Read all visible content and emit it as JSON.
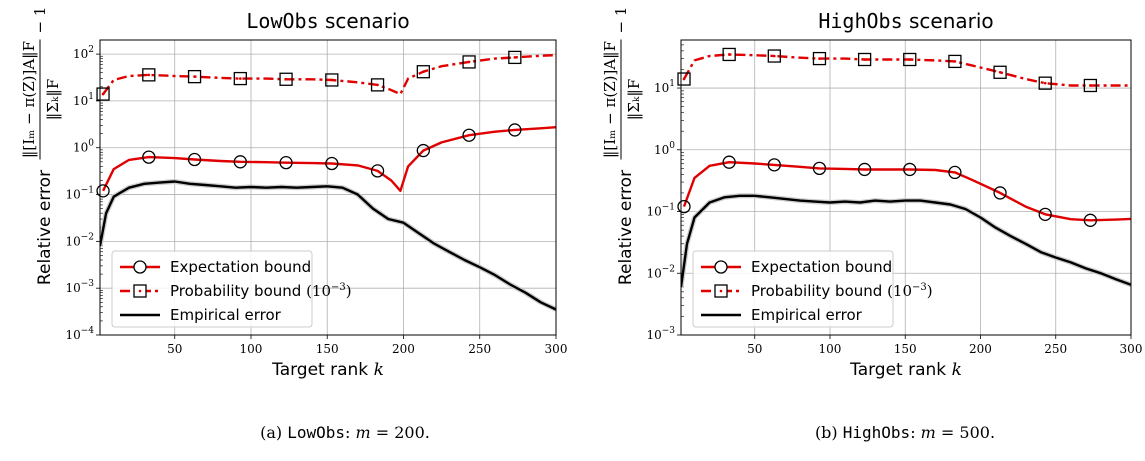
{
  "chart_data": [
    {
      "type": "line",
      "title_part1": "LowObs",
      "title_part2": " scenario",
      "xlabel": "Target rank ",
      "xlabel_var": "k",
      "ylabel_word": "Relative error",
      "ylabel_formula_num": "‖[Iₘ − π(Z)]A‖F",
      "ylabel_formula_den": "‖Σ̄ₖ‖F",
      "ylabel_minus_one": "− 1",
      "xlim": [
        1,
        300
      ],
      "ylim": [
        0.0001,
        200
      ],
      "y_scale": "log",
      "grid": true,
      "legend_position": "lower-left",
      "xticks": [
        "50",
        "100",
        "150",
        "200",
        "250",
        "300"
      ],
      "yticks": [
        {
          "base": "10",
          "exp": "2",
          "v": 100
        },
        {
          "base": "10",
          "exp": "1",
          "v": 10
        },
        {
          "base": "10",
          "exp": "0",
          "v": 1
        },
        {
          "base": "10",
          "exp": "−1",
          "v": 0.1
        },
        {
          "base": "10",
          "exp": "−2",
          "v": 0.01
        },
        {
          "base": "10",
          "exp": "−3",
          "v": 0.001
        },
        {
          "base": "10",
          "exp": "−4",
          "v": 0.0001
        }
      ],
      "series": [
        {
          "name": "Expectation bound",
          "color": "#e00000",
          "style": "solid",
          "marker": "circle",
          "x": [
            3,
            10,
            20,
            33,
            50,
            63,
            80,
            93,
            110,
            123,
            140,
            153,
            170,
            183,
            192,
            198,
            203,
            213,
            225,
            243,
            260,
            273,
            290,
            300
          ],
          "y": [
            0.12,
            0.35,
            0.55,
            0.63,
            0.6,
            0.56,
            0.52,
            0.5,
            0.49,
            0.48,
            0.47,
            0.46,
            0.42,
            0.32,
            0.2,
            0.12,
            0.4,
            0.87,
            1.3,
            1.85,
            2.2,
            2.4,
            2.6,
            2.75
          ],
          "marker_x": [
            3,
            33,
            63,
            93,
            123,
            153,
            183,
            213,
            243,
            273
          ]
        },
        {
          "name": "Probability bound ",
          "name_math": "(10",
          "name_exp": "−3",
          "name_close": ")",
          "color": "#e00000",
          "style": "dashdot",
          "marker": "square",
          "x": [
            3,
            10,
            20,
            33,
            50,
            63,
            80,
            93,
            110,
            123,
            140,
            153,
            170,
            183,
            192,
            198,
            203,
            213,
            225,
            243,
            260,
            273,
            290,
            300
          ],
          "y": [
            14,
            28,
            34,
            36,
            34,
            33,
            31,
            30,
            30,
            29,
            29,
            28,
            25,
            22,
            17,
            14,
            30,
            42,
            55,
            68,
            80,
            85,
            92,
            95
          ],
          "marker_x": [
            3,
            33,
            63,
            93,
            123,
            153,
            183,
            213,
            243,
            273
          ]
        },
        {
          "name": "Empirical error",
          "color": "#000000",
          "style": "solid",
          "marker": "none",
          "x": [
            1,
            5,
            10,
            20,
            30,
            40,
            50,
            60,
            70,
            80,
            90,
            100,
            110,
            120,
            130,
            140,
            150,
            160,
            170,
            180,
            190,
            200,
            210,
            220,
            230,
            240,
            250,
            260,
            270,
            280,
            290,
            300
          ],
          "y": [
            0.008,
            0.04,
            0.09,
            0.14,
            0.17,
            0.18,
            0.19,
            0.17,
            0.16,
            0.15,
            0.14,
            0.145,
            0.14,
            0.145,
            0.14,
            0.145,
            0.15,
            0.14,
            0.1,
            0.05,
            0.03,
            0.025,
            0.015,
            0.009,
            0.006,
            0.004,
            0.0028,
            0.0019,
            0.0012,
            0.0008,
            0.0005,
            0.00035
          ]
        }
      ],
      "caption_prefix": "(a) ",
      "caption_mono": "LowObs",
      "caption_rest": ": ",
      "caption_var": "m",
      "caption_value": " = 200."
    },
    {
      "type": "line",
      "title_part1": "HighObs",
      "title_part2": " scenario",
      "xlabel": "Target rank ",
      "xlabel_var": "k",
      "ylabel_word": "Relative error",
      "ylabel_formula_num": "‖[Iₘ − π(Z)]A‖F",
      "ylabel_formula_den": "‖Σ̄ₖ‖F",
      "ylabel_minus_one": "− 1",
      "xlim": [
        1,
        300
      ],
      "ylim": [
        0.001,
        60
      ],
      "y_scale": "log",
      "grid": true,
      "legend_position": "lower-left",
      "xticks": [
        "50",
        "100",
        "150",
        "200",
        "250",
        "300"
      ],
      "yticks": [
        {
          "base": "10",
          "exp": "1",
          "v": 10
        },
        {
          "base": "10",
          "exp": "0",
          "v": 1
        },
        {
          "base": "10",
          "exp": "−1",
          "v": 0.1
        },
        {
          "base": "10",
          "exp": "−2",
          "v": 0.01
        },
        {
          "base": "10",
          "exp": "−3",
          "v": 0.001
        }
      ],
      "series": [
        {
          "name": "Expectation bound",
          "color": "#e00000",
          "style": "solid",
          "marker": "circle",
          "x": [
            3,
            10,
            20,
            33,
            50,
            63,
            80,
            93,
            110,
            123,
            140,
            153,
            170,
            183,
            195,
            213,
            230,
            243,
            260,
            273,
            290,
            300
          ],
          "y": [
            0.12,
            0.35,
            0.55,
            0.63,
            0.6,
            0.57,
            0.53,
            0.5,
            0.49,
            0.48,
            0.48,
            0.48,
            0.47,
            0.43,
            0.32,
            0.2,
            0.12,
            0.09,
            0.075,
            0.072,
            0.074,
            0.076
          ],
          "marker_x": [
            3,
            33,
            63,
            93,
            123,
            153,
            183,
            213,
            243,
            273
          ]
        },
        {
          "name": "Probability bound ",
          "name_math": "(10",
          "name_exp": "−3",
          "name_close": ")",
          "color": "#e00000",
          "style": "dashdot",
          "marker": "square",
          "x": [
            3,
            10,
            20,
            33,
            50,
            63,
            80,
            93,
            110,
            123,
            140,
            153,
            170,
            183,
            195,
            213,
            230,
            243,
            260,
            273,
            290,
            300
          ],
          "y": [
            14,
            28,
            33,
            35,
            34,
            33,
            31,
            30,
            30,
            29,
            29,
            29,
            28,
            27,
            23,
            18,
            14,
            12,
            11,
            11,
            11,
            11
          ],
          "marker_x": [
            3,
            33,
            63,
            93,
            123,
            153,
            183,
            213,
            243,
            273
          ]
        },
        {
          "name": "Empirical error",
          "color": "#000000",
          "style": "solid",
          "marker": "none",
          "x": [
            1,
            5,
            10,
            20,
            30,
            40,
            50,
            60,
            70,
            80,
            90,
            100,
            110,
            120,
            130,
            140,
            150,
            160,
            170,
            180,
            190,
            200,
            210,
            220,
            230,
            240,
            250,
            260,
            270,
            280,
            290,
            300
          ],
          "y": [
            0.006,
            0.03,
            0.08,
            0.14,
            0.17,
            0.18,
            0.18,
            0.17,
            0.16,
            0.15,
            0.145,
            0.14,
            0.145,
            0.14,
            0.15,
            0.145,
            0.15,
            0.15,
            0.14,
            0.13,
            0.11,
            0.08,
            0.055,
            0.04,
            0.03,
            0.022,
            0.018,
            0.015,
            0.012,
            0.01,
            0.008,
            0.0065
          ]
        }
      ],
      "caption_prefix": "(b) ",
      "caption_mono": "HighObs",
      "caption_rest": ": ",
      "caption_var": "m",
      "caption_value": " = 500."
    }
  ]
}
